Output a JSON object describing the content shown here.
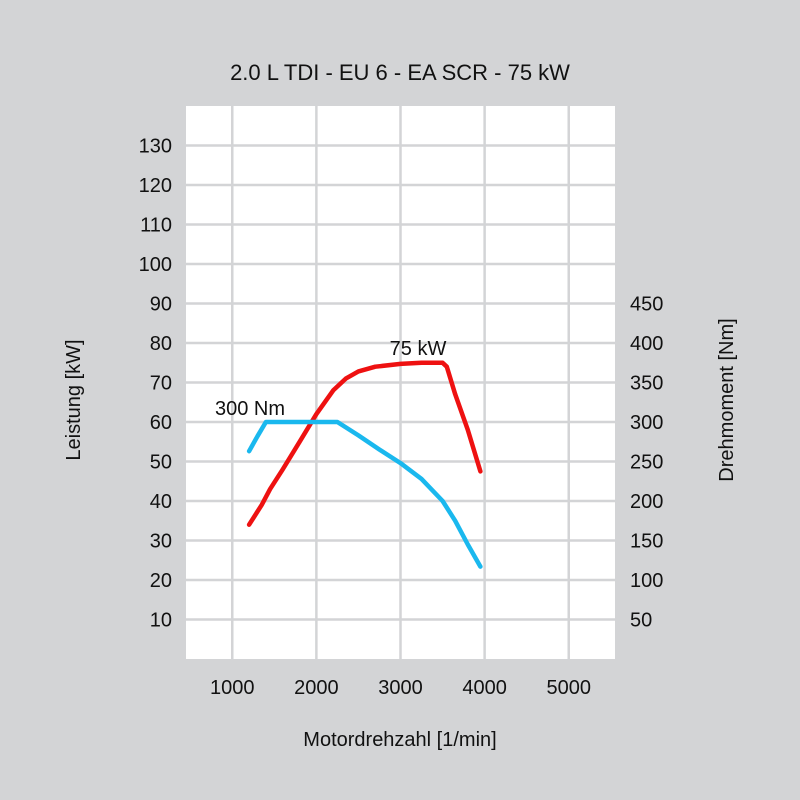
{
  "chart_data": {
    "type": "line",
    "title": "2.0 L TDI - EU 6 - EA SCR - 75 kW",
    "xlabel": "Motordrehzahl [1/min]",
    "ylabel_left": "Leistung [kW]",
    "ylabel_right": "Drehmoment [Nm]",
    "xlim": [
      450,
      5550
    ],
    "ylim_left": [
      0,
      140
    ],
    "ylim_right": [
      0,
      700
    ],
    "x_ticks": [
      1000,
      2000,
      3000,
      4000,
      5000
    ],
    "y_ticks_left": [
      10,
      20,
      30,
      40,
      50,
      60,
      70,
      80,
      90,
      100,
      110,
      120,
      130
    ],
    "y_ticks_right": [
      50,
      100,
      150,
      200,
      250,
      300,
      350,
      400,
      450
    ],
    "grid": true,
    "series": [
      {
        "name": "Leistung",
        "axis": "left",
        "color": "#ee1111",
        "label": "75 kW",
        "x": [
          1200,
          1350,
          1450,
          1600,
          1800,
          2000,
          2200,
          2350,
          2500,
          2700,
          3000,
          3250,
          3500,
          3550,
          3650,
          3800,
          3950
        ],
        "values": [
          34,
          39,
          43,
          48,
          55,
          62,
          68,
          71,
          72.8,
          74,
          74.7,
          75,
          75,
          74,
          67,
          58,
          47.5
        ]
      },
      {
        "name": "Drehmoment",
        "axis": "right",
        "color": "#1ab8ee",
        "label": "300 Nm",
        "x": [
          1200,
          1300,
          1400,
          1500,
          2000,
          2250,
          2500,
          2750,
          3000,
          3250,
          3500,
          3650,
          3800,
          3950
        ],
        "values": [
          263,
          282,
          300,
          300,
          300,
          300,
          283,
          265,
          248,
          228,
          200,
          175,
          145,
          117
        ]
      }
    ]
  }
}
